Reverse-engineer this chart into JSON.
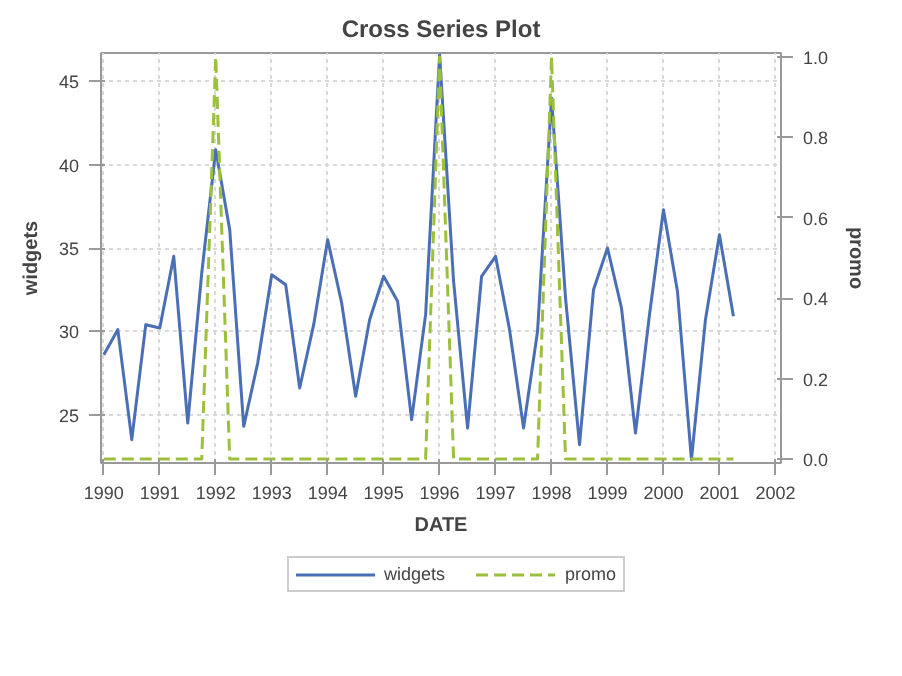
{
  "chart_data": {
    "type": "line",
    "title": "Cross Series Plot",
    "xlabel": "DATE",
    "ylabel": "widgets",
    "y2label": "promo",
    "x": [
      1990,
      1990.25,
      1990.5,
      1990.75,
      1991,
      1991.25,
      1991.5,
      1991.75,
      1992,
      1992.25,
      1992.5,
      1992.75,
      1993,
      1993.25,
      1993.5,
      1993.75,
      1994,
      1994.25,
      1994.5,
      1994.75,
      1995,
      1995.25,
      1995.5,
      1995.75,
      1996,
      1996.25,
      1996.5,
      1996.75,
      1997,
      1997.25,
      1997.5,
      1997.75,
      1998,
      1998.25,
      1998.5,
      1998.75,
      1999,
      1999.25,
      1999.5,
      1999.75,
      2000,
      2000.25,
      2000.5,
      2000.75,
      2001,
      2001.25
    ],
    "series": [
      {
        "name": "widgets",
        "color": "#4a6fb5",
        "line_style": "solid",
        "values": [
          28.6,
          30.1,
          23.5,
          30.4,
          30.2,
          34.5,
          24.5,
          33.5,
          40.9,
          36.1,
          24.3,
          28.1,
          33.4,
          32.8,
          26.6,
          30.4,
          35.5,
          31.7,
          26.1,
          30.7,
          33.3,
          31.8,
          24.7,
          31.0,
          46.6,
          33.0,
          24.2,
          33.3,
          34.5,
          30.1,
          24.2,
          30.0,
          44.0,
          32.0,
          23.2,
          32.5,
          35.0,
          31.4,
          23.9,
          31.0,
          37.3,
          32.4,
          22.3,
          30.7,
          35.8,
          30.9
        ]
      },
      {
        "name": "promo",
        "color": "#9cbf3c",
        "line_style": "dashed",
        "axis": "y2",
        "values": [
          0,
          0,
          0,
          0,
          0,
          0,
          0,
          0,
          1,
          0,
          0,
          0,
          0,
          0,
          0,
          0,
          0,
          0,
          0,
          0,
          0,
          0,
          0,
          0,
          1,
          0,
          0,
          0,
          0,
          0,
          0,
          0,
          1,
          0,
          0,
          0,
          0,
          0,
          0,
          0,
          0,
          0,
          0,
          0,
          0,
          0
        ]
      }
    ],
    "xlim": [
      1989.95,
      2002.1
    ],
    "xticks": [
      1990,
      1991,
      1992,
      1993,
      1994,
      1995,
      1996,
      1997,
      1998,
      1999,
      2000,
      2001,
      2002
    ],
    "ylim": [
      22.1,
      46.7
    ],
    "yticks": [
      25,
      30,
      35,
      40,
      45
    ],
    "y2lim": [
      -0.01,
      1.01
    ],
    "y2ticks": [
      {
        "value": 0,
        "label": "0.0"
      },
      0.2,
      0.4,
      0.6,
      0.8,
      {
        "value": 1,
        "label": "1.0"
      }
    ],
    "grid": true,
    "legend": "bottom"
  }
}
